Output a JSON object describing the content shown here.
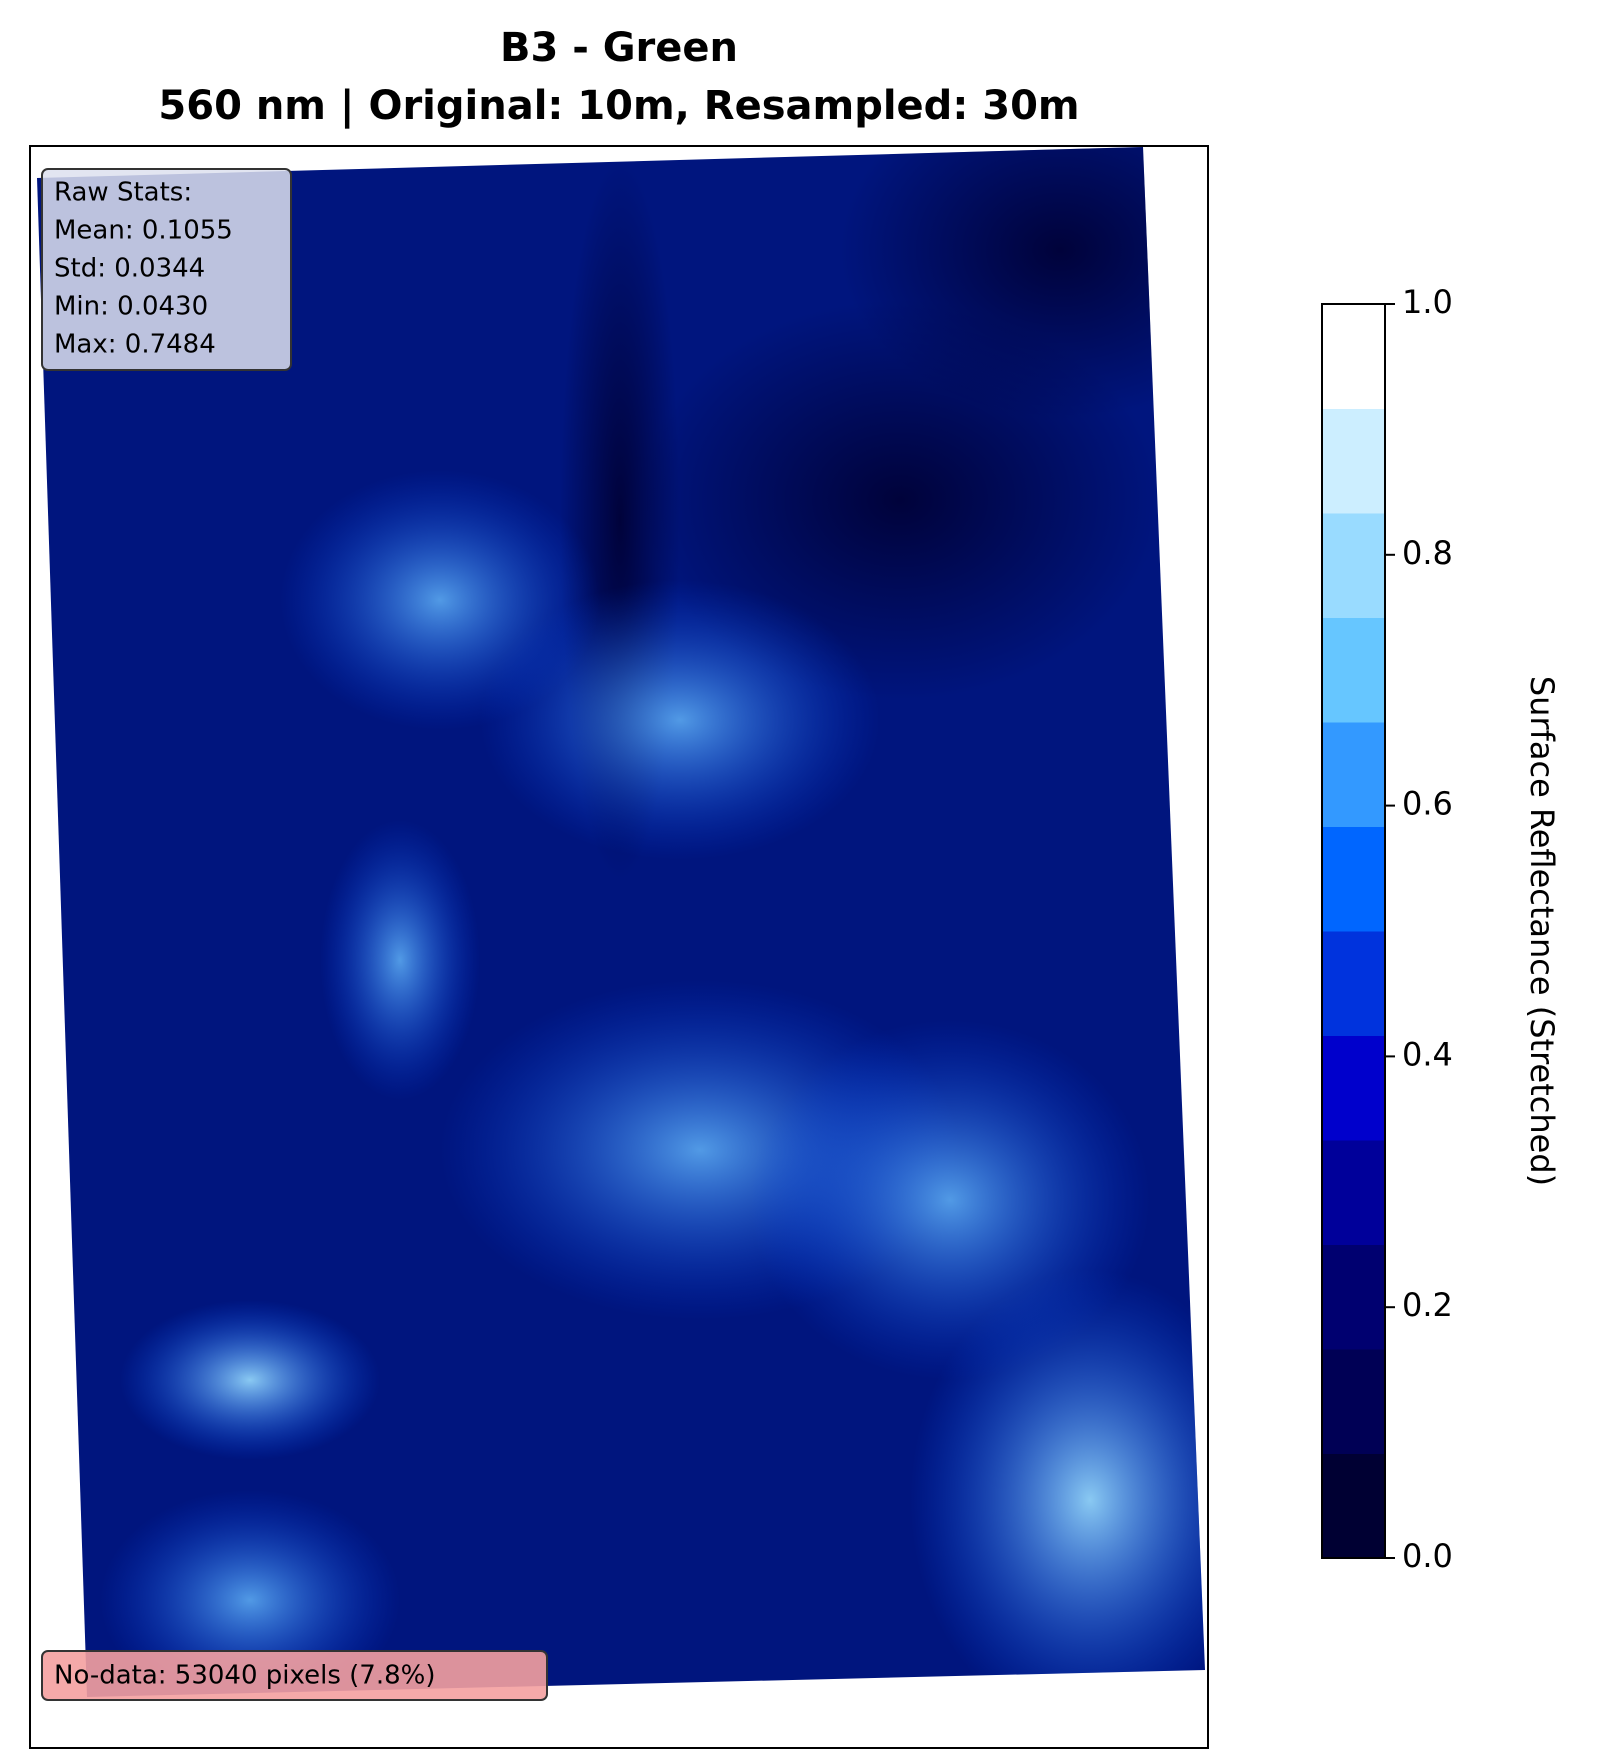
{
  "chart_data": {
    "type": "raster",
    "title": "B3 - Green",
    "subtitle": "560 nm | Original: 10m, Resampled: 30m",
    "stats": [
      "Raw Stats:",
      "Mean: 0.1055",
      "Std: 0.0344",
      "Min: 0.0430",
      "Max: 0.7484"
    ],
    "nodata": "No-data: 53040 pixels (7.8%)",
    "colorbar": {
      "label": "Surface Reflectance (Stretched)",
      "lim": [
        0,
        1
      ],
      "ticks": [
        {
          "value": 0,
          "label": "0.0"
        },
        {
          "value": 0.2,
          "label": "0.2"
        },
        {
          "value": 0.4,
          "label": "0.4"
        },
        {
          "value": 0.6,
          "label": "0.6"
        },
        {
          "value": 0.8,
          "label": "0.8"
        },
        {
          "value": 1,
          "label": "1.0"
        }
      ],
      "colors": [
        "#000033",
        "#000055",
        "#000070",
        "#00009a",
        "#0000cc",
        "#0033dd",
        "#0066ff",
        "#3399ff",
        "#66c6ff",
        "#99dbff",
        "#cceeff",
        "#ffffff"
      ]
    }
  }
}
